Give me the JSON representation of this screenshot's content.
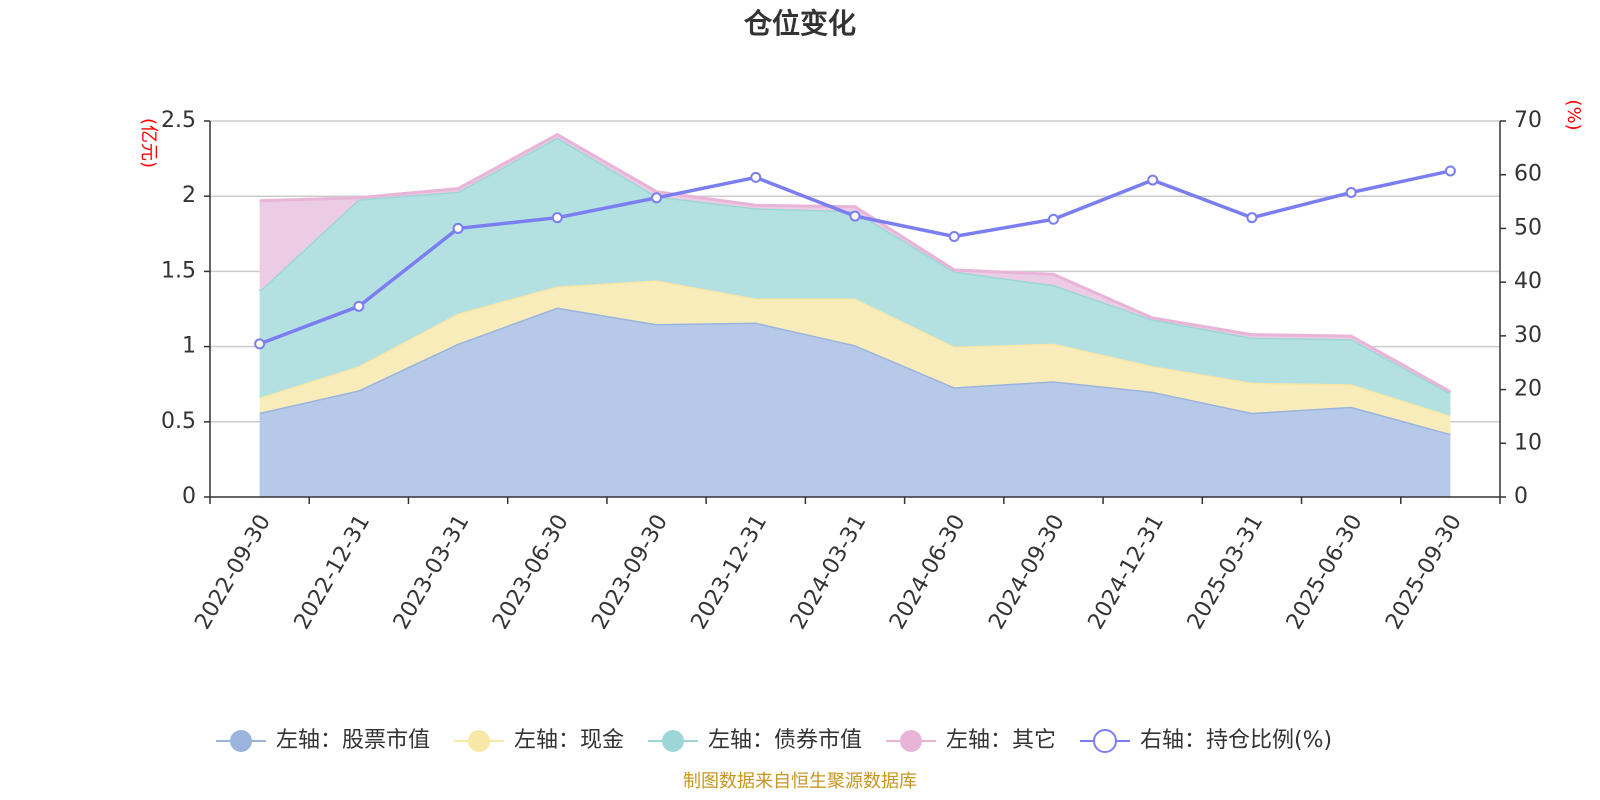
{
  "chart_data": {
    "type": "area",
    "title": "仓位变化",
    "source_note": "制图数据来自恒生聚源数据库",
    "categories": [
      "2022-09-30",
      "2022-12-31",
      "2023-03-31",
      "2023-06-30",
      "2023-09-30",
      "2023-12-31",
      "2024-03-31",
      "2024-06-30",
      "2024-09-30",
      "2024-12-31",
      "2025-03-31",
      "2025-06-30",
      "2025-09-30"
    ],
    "left_axis": {
      "unit": "(亿元)",
      "min": 0,
      "max": 2.5,
      "ticks": [
        0,
        0.5,
        1,
        1.5,
        2,
        2.5
      ],
      "tick_labels": [
        "0",
        "0.5",
        "1",
        "1.5",
        "2",
        "2.5"
      ]
    },
    "right_axis": {
      "unit": "(%)",
      "min": 0,
      "max": 70,
      "ticks": [
        0,
        10,
        20,
        30,
        40,
        50,
        60,
        70
      ],
      "tick_labels": [
        "0",
        "10",
        "20",
        "30",
        "40",
        "50",
        "60",
        "70"
      ]
    },
    "stacked_series": [
      {
        "name": "左轴：股票市值",
        "color": "#9ab4de",
        "fill": "#b7c9e8",
        "values": [
          0.56,
          0.71,
          1.02,
          1.26,
          1.15,
          1.16,
          1.01,
          0.73,
          0.77,
          0.7,
          0.56,
          0.6,
          0.42
        ]
      },
      {
        "name": "左轴：现金",
        "color": "#f9e7a6",
        "fill": "#f8ecbb",
        "values": [
          0.1,
          0.16,
          0.2,
          0.14,
          0.29,
          0.16,
          0.31,
          0.27,
          0.25,
          0.17,
          0.2,
          0.15,
          0.12
        ]
      },
      {
        "name": "左轴：债券市值",
        "color": "#9dd6d6",
        "fill": "#b3e0e0",
        "values": [
          0.71,
          1.11,
          0.81,
          0.99,
          0.56,
          0.6,
          0.58,
          0.5,
          0.39,
          0.31,
          0.3,
          0.3,
          0.15
        ]
      },
      {
        "name": "左轴：其它",
        "color": "#e8b4d8",
        "fill": "#eccbe4",
        "values": [
          0.6,
          0.01,
          0.02,
          0.02,
          0.03,
          0.02,
          0.03,
          0.01,
          0.07,
          0.01,
          0.02,
          0.02,
          0.01
        ]
      }
    ],
    "line_series": {
      "name": "右轴：持仓比例(%)",
      "color": "#7b7ef0",
      "values": [
        28.5,
        35.5,
        50,
        52,
        55.7,
        59.5,
        52.3,
        48.5,
        51.7,
        59,
        52,
        56.7,
        60.7
      ]
    }
  }
}
